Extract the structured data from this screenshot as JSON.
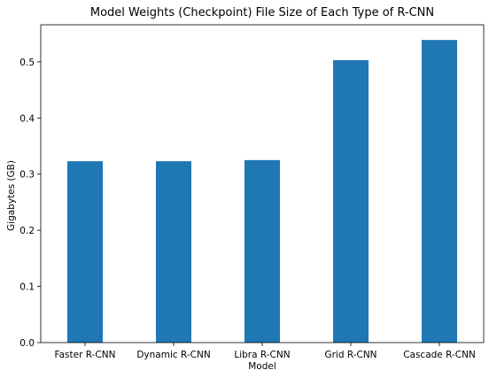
{
  "chart_data": {
    "type": "bar",
    "title": "Model Weights (Checkpoint) File Size of Each Type of R-CNN",
    "xlabel": "Model",
    "ylabel": "Gigabytes (GB)",
    "categories": [
      "Faster R-CNN",
      "Dynamic R-CNN",
      "Libra R-CNN",
      "Grid R-CNN",
      "Cascade R-CNN"
    ],
    "values": [
      0.323,
      0.323,
      0.325,
      0.503,
      0.539
    ],
    "ylim": [
      0,
      0.566
    ],
    "yticks": [
      0.0,
      0.1,
      0.2,
      0.3,
      0.4,
      0.5
    ],
    "ytick_labels": [
      "0.0",
      "0.1",
      "0.2",
      "0.3",
      "0.4",
      "0.5"
    ],
    "bar_color": "#1f77b4",
    "grid": false,
    "legend": "none"
  }
}
